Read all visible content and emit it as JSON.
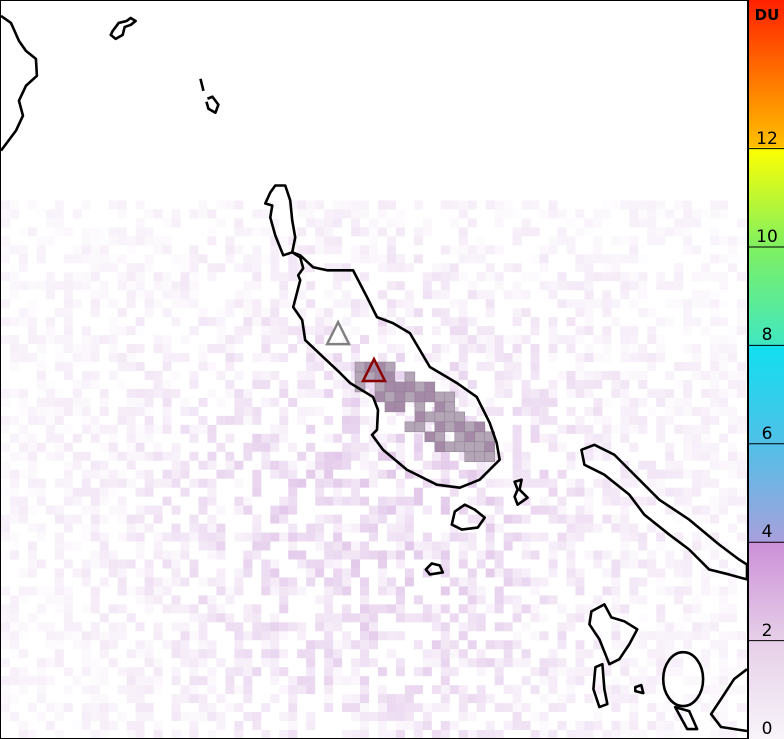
{
  "colorbar": {
    "unit": "DU",
    "ticks": [
      "0",
      "2",
      "4",
      "6",
      "8",
      "10",
      "12"
    ],
    "range": [
      0,
      15
    ],
    "stops": [
      {
        "value": 0,
        "color": "#f8f4fa"
      },
      {
        "value": 2,
        "color": "#e6cfe8"
      },
      {
        "value": 4,
        "color": "#cc90d8"
      },
      {
        "value": 4.01,
        "color": "#a8a0dc"
      },
      {
        "value": 6,
        "color": "#50c0e8"
      },
      {
        "value": 8,
        "color": "#10e0f0"
      },
      {
        "value": 8.01,
        "color": "#40e8c0"
      },
      {
        "value": 10,
        "color": "#80f060"
      },
      {
        "value": 12,
        "color": "#ffff00"
      },
      {
        "value": 12.01,
        "color": "#ffc000"
      },
      {
        "value": 15,
        "color": "#ff2000"
      }
    ]
  },
  "markers": [
    {
      "name": "volcano-inactive",
      "color": "#808080"
    },
    {
      "name": "volcano-active",
      "color": "#8b0000"
    }
  ]
}
